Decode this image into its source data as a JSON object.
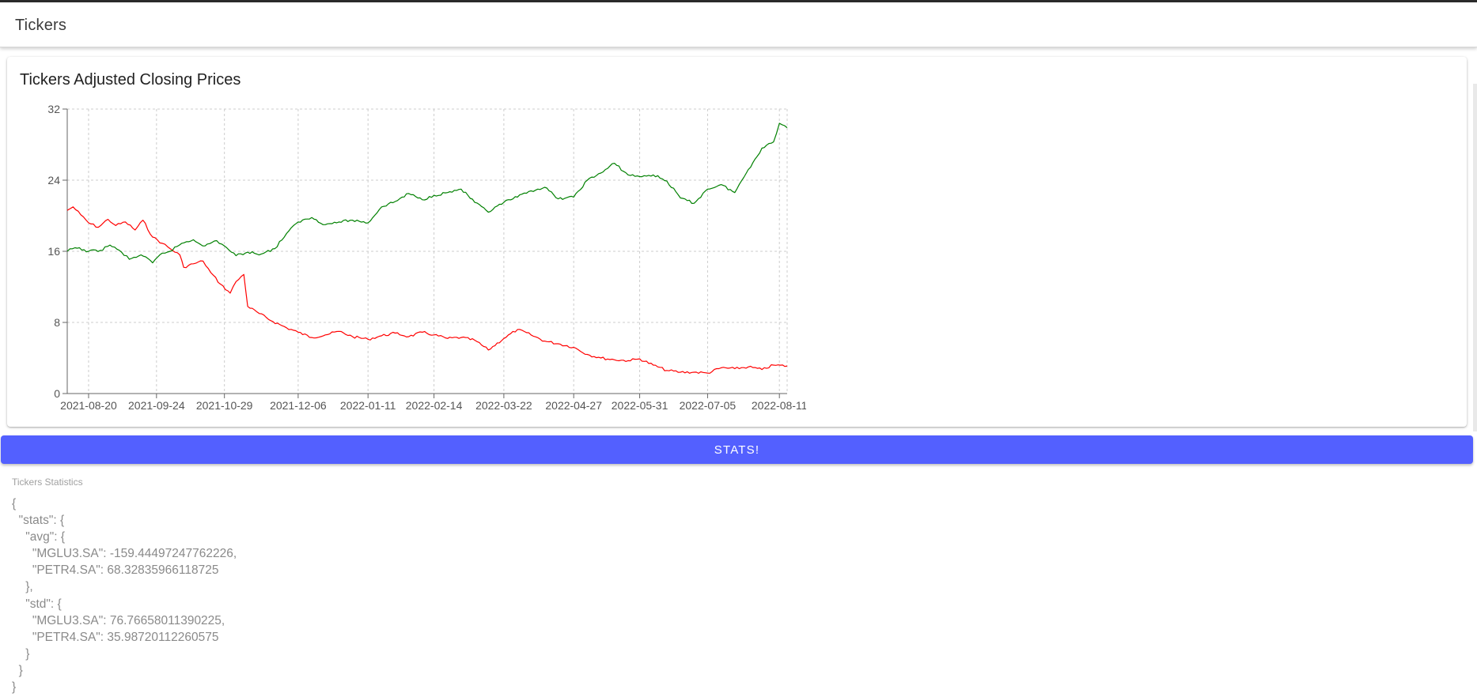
{
  "app": {
    "title": "Tickers"
  },
  "chart_card": {
    "title": "Tickers Adjusted Closing Prices"
  },
  "chart_data": {
    "type": "line",
    "title": "Tickers Adjusted Closing Prices",
    "xlabel": "",
    "ylabel": "",
    "ylim": [
      0,
      32
    ],
    "yticks": [
      "0",
      "8",
      "16",
      "24",
      "32"
    ],
    "xticks": [
      "2021-08-20",
      "2021-09-24",
      "2021-10-29",
      "2021-12-06",
      "2022-01-11",
      "2022-02-14",
      "2022-03-22",
      "2022-04-27",
      "2022-05-31",
      "2022-07-05",
      "2022-08-11"
    ],
    "x_range": [
      "2021-08-09",
      "2022-08-15"
    ],
    "grid": true,
    "legend": "none",
    "series": [
      {
        "color": "#ff0000",
        "points": [
          [
            "2021-08-09",
            20.6
          ],
          [
            "2021-08-12",
            21.0
          ],
          [
            "2021-08-16",
            20.1
          ],
          [
            "2021-08-20",
            19.2
          ],
          [
            "2021-08-25",
            18.7
          ],
          [
            "2021-08-30",
            19.6
          ],
          [
            "2021-09-03",
            18.9
          ],
          [
            "2021-09-08",
            19.3
          ],
          [
            "2021-09-13",
            18.4
          ],
          [
            "2021-09-17",
            19.5
          ],
          [
            "2021-09-22",
            17.6
          ],
          [
            "2021-09-27",
            16.9
          ],
          [
            "2021-10-01",
            16.3
          ],
          [
            "2021-10-06",
            15.6
          ],
          [
            "2021-10-08",
            14.2
          ],
          [
            "2021-10-13",
            14.6
          ],
          [
            "2021-10-18",
            14.9
          ],
          [
            "2021-10-22",
            13.6
          ],
          [
            "2021-10-27",
            12.3
          ],
          [
            "2021-11-01",
            11.3
          ],
          [
            "2021-11-04",
            12.6
          ],
          [
            "2021-11-08",
            13.4
          ],
          [
            "2021-11-10",
            9.8
          ],
          [
            "2021-11-16",
            9.0
          ],
          [
            "2021-11-23",
            8.1
          ],
          [
            "2021-11-30",
            7.4
          ],
          [
            "2021-12-06",
            6.9
          ],
          [
            "2021-12-13",
            6.3
          ],
          [
            "2021-12-20",
            6.6
          ],
          [
            "2021-12-27",
            7.0
          ],
          [
            "2022-01-03",
            6.4
          ],
          [
            "2022-01-11",
            6.1
          ],
          [
            "2022-01-18",
            6.5
          ],
          [
            "2022-01-25",
            6.8
          ],
          [
            "2022-02-01",
            6.4
          ],
          [
            "2022-02-08",
            6.9
          ],
          [
            "2022-02-14",
            6.6
          ],
          [
            "2022-02-21",
            6.2
          ],
          [
            "2022-02-28",
            6.3
          ],
          [
            "2022-03-07",
            6.0
          ],
          [
            "2022-03-14",
            4.9
          ],
          [
            "2022-03-22",
            6.2
          ],
          [
            "2022-03-29",
            7.2
          ],
          [
            "2022-04-05",
            6.6
          ],
          [
            "2022-04-12",
            5.9
          ],
          [
            "2022-04-19",
            5.6
          ],
          [
            "2022-04-27",
            5.2
          ],
          [
            "2022-05-04",
            4.4
          ],
          [
            "2022-05-11",
            4.0
          ],
          [
            "2022-05-18",
            3.8
          ],
          [
            "2022-05-25",
            3.7
          ],
          [
            "2022-05-31",
            3.9
          ],
          [
            "2022-06-07",
            3.2
          ],
          [
            "2022-06-14",
            2.6
          ],
          [
            "2022-06-21",
            2.4
          ],
          [
            "2022-06-28",
            2.4
          ],
          [
            "2022-07-05",
            2.3
          ],
          [
            "2022-07-12",
            2.9
          ],
          [
            "2022-07-19",
            2.8
          ],
          [
            "2022-07-26",
            3.0
          ],
          [
            "2022-08-02",
            2.7
          ],
          [
            "2022-08-08",
            3.2
          ],
          [
            "2022-08-15",
            3.1
          ]
        ]
      },
      {
        "color": "#008000",
        "points": [
          [
            "2021-08-09",
            16.0
          ],
          [
            "2021-08-13",
            16.4
          ],
          [
            "2021-08-20",
            16.0
          ],
          [
            "2021-08-26",
            16.1
          ],
          [
            "2021-08-31",
            16.7
          ],
          [
            "2021-09-06",
            15.9
          ],
          [
            "2021-09-10",
            15.1
          ],
          [
            "2021-09-16",
            15.6
          ],
          [
            "2021-09-22",
            14.7
          ],
          [
            "2021-09-27",
            15.8
          ],
          [
            "2021-10-01",
            16.0
          ],
          [
            "2021-10-07",
            16.9
          ],
          [
            "2021-10-13",
            17.3
          ],
          [
            "2021-10-19",
            16.6
          ],
          [
            "2021-10-25",
            17.2
          ],
          [
            "2021-10-29",
            16.6
          ],
          [
            "2021-11-04",
            15.5
          ],
          [
            "2021-11-10",
            15.9
          ],
          [
            "2021-11-17",
            15.7
          ],
          [
            "2021-11-24",
            16.3
          ],
          [
            "2021-11-30",
            18.0
          ],
          [
            "2021-12-06",
            19.3
          ],
          [
            "2021-12-13",
            19.8
          ],
          [
            "2021-12-20",
            19.0
          ],
          [
            "2021-12-27",
            19.3
          ],
          [
            "2022-01-03",
            19.5
          ],
          [
            "2022-01-11",
            19.2
          ],
          [
            "2022-01-18",
            21.0
          ],
          [
            "2022-01-25",
            21.6
          ],
          [
            "2022-02-01",
            22.5
          ],
          [
            "2022-02-08",
            21.8
          ],
          [
            "2022-02-14",
            22.3
          ],
          [
            "2022-02-21",
            22.6
          ],
          [
            "2022-02-28",
            23.0
          ],
          [
            "2022-03-07",
            21.5
          ],
          [
            "2022-03-14",
            20.4
          ],
          [
            "2022-03-22",
            21.5
          ],
          [
            "2022-03-29",
            22.1
          ],
          [
            "2022-04-05",
            22.8
          ],
          [
            "2022-04-12",
            23.2
          ],
          [
            "2022-04-19",
            21.9
          ],
          [
            "2022-04-27",
            22.1
          ],
          [
            "2022-05-04",
            24.0
          ],
          [
            "2022-05-11",
            24.8
          ],
          [
            "2022-05-18",
            25.9
          ],
          [
            "2022-05-25",
            24.6
          ],
          [
            "2022-05-31",
            24.4
          ],
          [
            "2022-06-07",
            24.6
          ],
          [
            "2022-06-14",
            23.9
          ],
          [
            "2022-06-21",
            22.0
          ],
          [
            "2022-06-28",
            21.4
          ],
          [
            "2022-07-05",
            23.0
          ],
          [
            "2022-07-12",
            23.5
          ],
          [
            "2022-07-19",
            22.6
          ],
          [
            "2022-07-26",
            25.2
          ],
          [
            "2022-08-02",
            27.6
          ],
          [
            "2022-08-08",
            28.3
          ],
          [
            "2022-08-11",
            30.4
          ],
          [
            "2022-08-15",
            29.9
          ]
        ]
      }
    ]
  },
  "actions": {
    "stats_label": "STATS!"
  },
  "stats": {
    "label": "Tickers Statistics",
    "json_text": "{\n  \"stats\": {\n    \"avg\": {\n      \"MGLU3.SA\": -159.44497247762226,\n      \"PETR4.SA\": 68.32835966118725\n    },\n    \"std\": {\n      \"MGLU3.SA\": 76.76658011390225,\n      \"PETR4.SA\": 35.98720112260575\n    }\n  }\n}",
    "values": {
      "avg": {
        "MGLU3.SA": -159.44497247762226,
        "PETR4.SA": 68.32835966118725
      },
      "std": {
        "MGLU3.SA": 76.76658011390225,
        "PETR4.SA": 35.98720112260575
      }
    }
  }
}
